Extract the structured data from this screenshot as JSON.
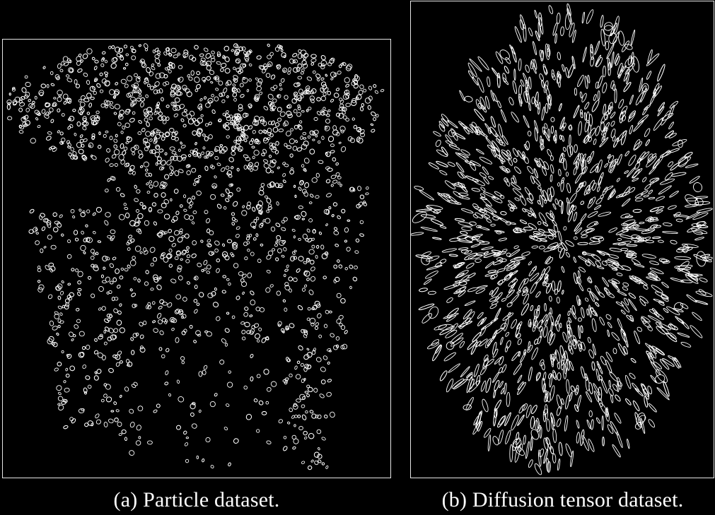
{
  "panels": {
    "a": {
      "caption": "(a) Particle dataset."
    },
    "b": {
      "caption": "(b) Diffusion tensor dataset."
    }
  },
  "colors": {
    "background": "#000000",
    "stroke": "#ffffff",
    "border": "#e6e6e6"
  }
}
